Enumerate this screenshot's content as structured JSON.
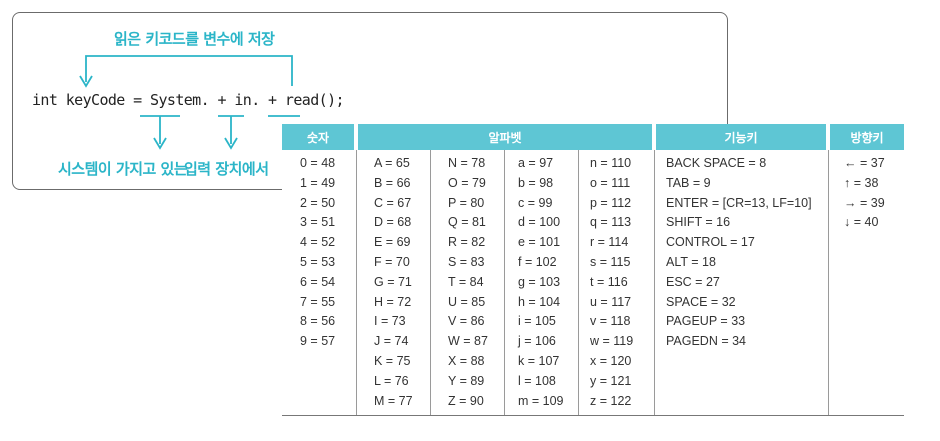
{
  "annotations": {
    "top": "읽은 키코드를 변수에 저장",
    "bottom_left": "시스템이 가지고 있는",
    "bottom_right": "입력 장치에서"
  },
  "code": "int keyCode = System. + in. + read();",
  "table": {
    "headers": {
      "digits": "숫자",
      "alphabet": "알파벳",
      "function": "기능키",
      "arrow": "방향키"
    },
    "digits": [
      "0 = 48",
      "1 = 49",
      "2 = 50",
      "3 = 51",
      "4 = 52",
      "5 = 53",
      "6 = 54",
      "7 = 55",
      "8 = 56",
      "9 = 57"
    ],
    "alpha_upper_1": [
      "A = 65",
      "B = 66",
      "C = 67",
      "D = 68",
      "E = 69",
      "F = 70",
      "G = 71",
      "H = 72",
      "I = 73",
      "J = 74",
      "K = 75",
      "L = 76",
      "M = 77"
    ],
    "alpha_upper_2": [
      "N = 78",
      "O = 79",
      "P = 80",
      "Q = 81",
      "R = 82",
      "S = 83",
      "T = 84",
      "U = 85",
      "V = 86",
      "W = 87",
      "X = 88",
      "Y = 89",
      "Z = 90"
    ],
    "alpha_lower_1": [
      "a = 97",
      "b = 98",
      "c = 99",
      "d = 100",
      "e = 101",
      "f = 102",
      "g = 103",
      "h = 104",
      "i = 105",
      "j = 106",
      "k = 107",
      "l = 108",
      "m = 109"
    ],
    "alpha_lower_2": [
      "n = 110",
      "o = 111",
      "p = 112",
      "q = 113",
      "r = 114",
      "s = 115",
      "t = 116",
      "u = 117",
      "v = 118",
      "w = 119",
      "x = 120",
      "y = 121",
      "z = 122"
    ],
    "function_keys": [
      "BACK SPACE = 8",
      "TAB = 9",
      "ENTER = [CR=13, LF=10]",
      "SHIFT = 16",
      "CONTROL = 17",
      "ALT = 18",
      "ESC = 27",
      "SPACE = 32",
      "PAGEUP = 33",
      "PAGEDN = 34"
    ],
    "arrow_keys": [
      "← = 37",
      "↑ = 38",
      "→ = 39",
      "↓ = 40"
    ]
  },
  "colors": {
    "header_bg": "#5ec6d4",
    "annotation": "#2bb5c8"
  }
}
